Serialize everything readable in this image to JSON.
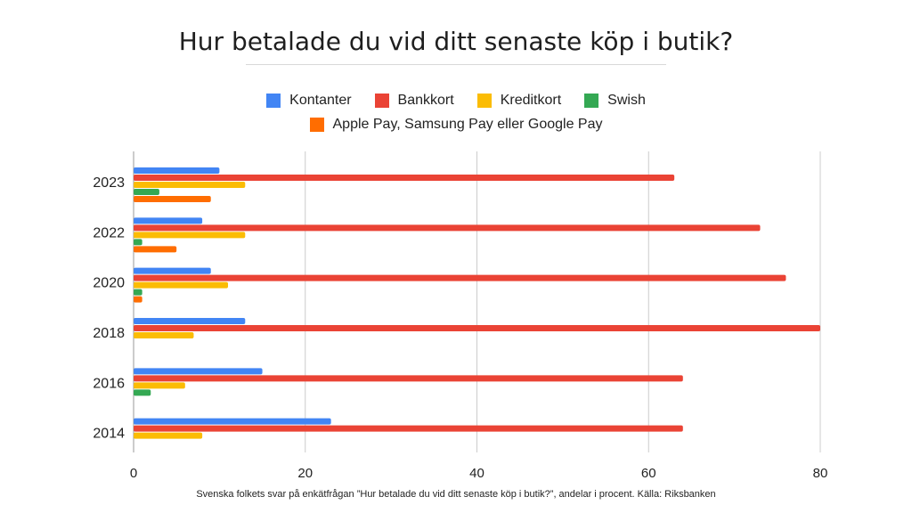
{
  "title": "Hur betalade du vid ditt senaste köp i butik?",
  "footnote": "Svenska folkets svar på enkätfrågan ”Hur betalade du vid ditt senaste köp i butik?”, andelar i procent. Källa: Riksbanken",
  "colors": {
    "Kontanter": "#4285f4",
    "Bankkort": "#ea4335",
    "Kreditkort": "#fbbc04",
    "Swish": "#34a853",
    "Apple Pay, Samsung Pay eller Google Pay": "#ff6d01"
  },
  "chart_data": {
    "type": "bar",
    "orientation": "horizontal",
    "title": "Hur betalade du vid ditt senaste köp i butik?",
    "xlabel": "",
    "ylabel": "",
    "xlim": [
      0,
      80
    ],
    "x_ticks": [
      "0",
      "20",
      "40",
      "60",
      "80"
    ],
    "grid": true,
    "legend_position": "top",
    "categories": [
      "2023",
      "2022",
      "2020",
      "2018",
      "2016",
      "2014"
    ],
    "series": [
      {
        "name": "Kontanter",
        "values": [
          10,
          8,
          9,
          13,
          15,
          23
        ]
      },
      {
        "name": "Bankkort",
        "values": [
          63,
          73,
          76,
          80,
          64,
          64
        ]
      },
      {
        "name": "Kreditkort",
        "values": [
          13,
          13,
          11,
          7,
          6,
          8
        ]
      },
      {
        "name": "Swish",
        "values": [
          3,
          1,
          1,
          0,
          2,
          0
        ]
      },
      {
        "name": "Apple Pay, Samsung Pay eller Google Pay",
        "values": [
          9,
          5,
          1,
          0,
          0,
          0
        ]
      }
    ]
  }
}
